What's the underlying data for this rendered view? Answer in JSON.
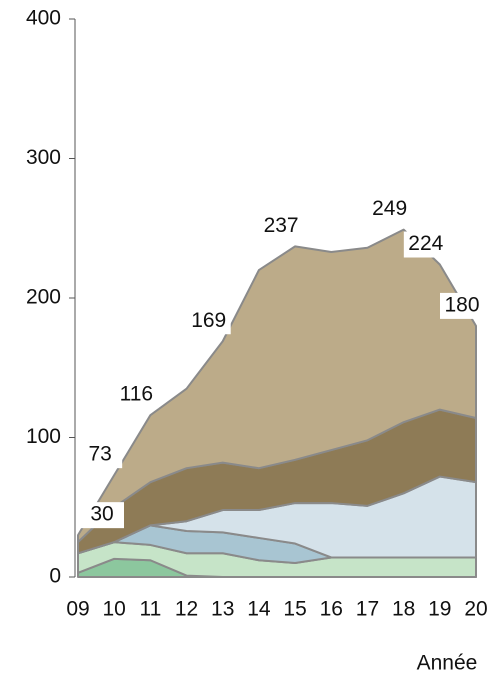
{
  "chart_data": {
    "type": "stacked_area",
    "x_label": "Année",
    "categories": [
      "09",
      "10",
      "11",
      "12",
      "13",
      "14",
      "15",
      "16",
      "17",
      "18",
      "19",
      "20"
    ],
    "series": [
      {
        "color": "#8cc79e",
        "values": [
          3,
          13,
          12,
          1,
          0,
          0,
          0,
          0,
          0,
          0,
          0,
          0
        ]
      },
      {
        "color": "#c6e4c8",
        "values": [
          14,
          12,
          11,
          16,
          17,
          12,
          10,
          14,
          14,
          14,
          14,
          14
        ]
      },
      {
        "color": "#a8c5d2",
        "values": [
          0,
          0,
          14,
          16,
          15,
          16,
          14,
          0,
          0,
          0,
          0,
          0
        ]
      },
      {
        "color": "#d5e2ea",
        "values": [
          0,
          0,
          0,
          7,
          16,
          20,
          29,
          39,
          37,
          46,
          58,
          54
        ]
      },
      {
        "color": "#8e7b56",
        "values": [
          8,
          25,
          31,
          38,
          34,
          30,
          31,
          38,
          47,
          51,
          48,
          46
        ]
      },
      {
        "color": "#bcab89",
        "values": [
          5,
          23,
          48,
          57,
          87,
          142,
          153,
          142,
          138,
          138,
          104,
          66
        ]
      }
    ],
    "totals": [
      30,
      73,
      116,
      null,
      169,
      null,
      237,
      null,
      null,
      249,
      224,
      180
    ],
    "ylim": [
      0,
      400
    ],
    "yticks": [
      0,
      100,
      200,
      300,
      400
    ]
  }
}
